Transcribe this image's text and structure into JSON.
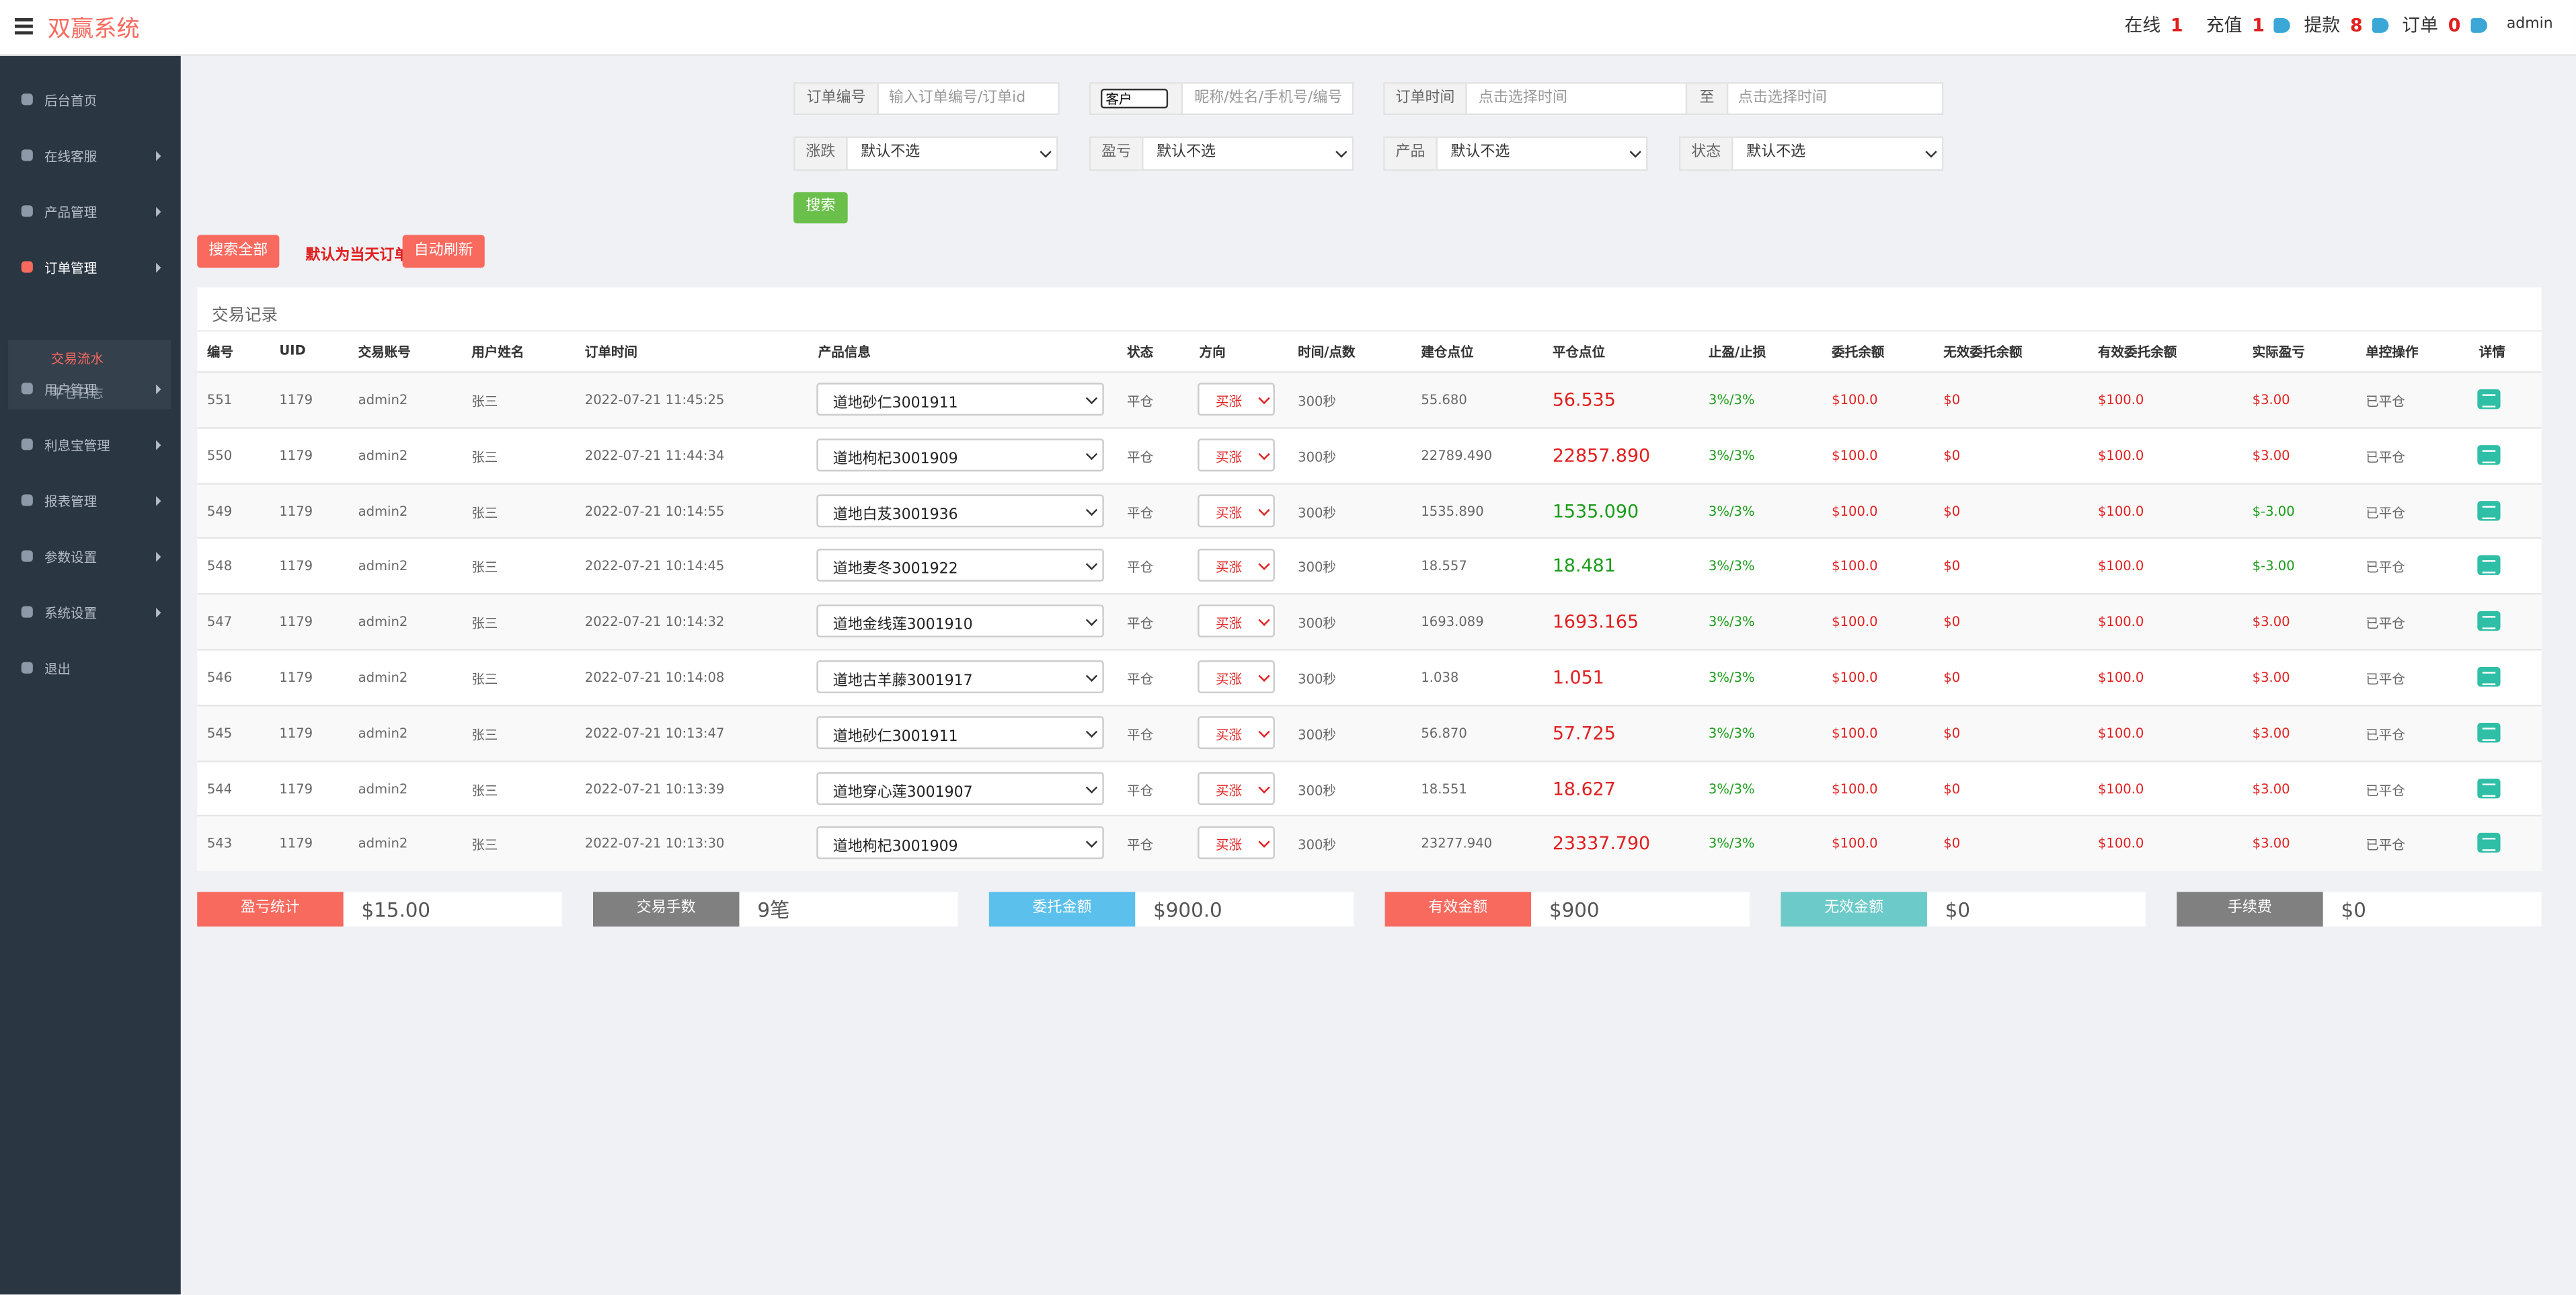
{
  "header": {
    "brand": "双赢系统",
    "stats": [
      {
        "label": "在线",
        "value": "1"
      },
      {
        "label": "充值",
        "value": "1"
      },
      {
        "label": "提款",
        "value": "8"
      },
      {
        "label": "订单",
        "value": "0"
      }
    ],
    "user": "admin"
  },
  "sidebar": {
    "items": [
      "后台首页",
      "在线客服",
      "产品管理",
      "订单管理",
      "用户管理",
      "利息宝管理",
      "报表管理",
      "参数设置",
      "系统设置",
      "退出"
    ],
    "sub": [
      "交易流水",
      "平仓日志"
    ]
  },
  "filters": {
    "order_no": {
      "label": "订单编号",
      "placeholder": "输入订单编号/订单id"
    },
    "customer": {
      "select": "客户",
      "placeholder": "昵称/姓名/手机号/编号"
    },
    "time": {
      "label": "订单时间",
      "from": "点击选择时间",
      "to_label": "至",
      "to": "点击选择时间"
    },
    "selects": [
      {
        "label": "涨跌",
        "value": "默认不选"
      },
      {
        "label": "盈亏",
        "value": "默认不选"
      },
      {
        "label": "产品",
        "value": "默认不选"
      },
      {
        "label": "状态",
        "value": "默认不选"
      }
    ],
    "search": "搜索"
  },
  "actions": {
    "search_all": "搜索全部",
    "note": "默认为当天订单",
    "auto_refresh": "自动刷新"
  },
  "table": {
    "title": "交易记录",
    "columns": [
      "编号",
      "UID",
      "交易账号",
      "用户姓名",
      "订单时间",
      "产品信息",
      "状态",
      "方向",
      "时间/点数",
      "建仓点位",
      "平仓点位",
      "止盈/止损",
      "委托余额",
      "无效委托余额",
      "有效委托余额",
      "实际盈亏",
      "单控操作",
      "详情"
    ],
    "rows": [
      [
        "551",
        "1179",
        "admin2",
        "张三",
        "2022-07-21 11:45:25",
        "道地砂仁3001911",
        "平仓",
        "买涨",
        "300秒",
        "55.680",
        "56.535",
        "3%/3%",
        "$100.0",
        "$0",
        "$100.0",
        "$3.00",
        "已平仓"
      ],
      [
        "550",
        "1179",
        "admin2",
        "张三",
        "2022-07-21 11:44:34",
        "道地枸杞3001909",
        "平仓",
        "买涨",
        "300秒",
        "22789.490",
        "22857.890",
        "3%/3%",
        "$100.0",
        "$0",
        "$100.0",
        "$3.00",
        "已平仓"
      ],
      [
        "549",
        "1179",
        "admin2",
        "张三",
        "2022-07-21 10:14:55",
        "道地白芨3001936",
        "平仓",
        "买涨",
        "300秒",
        "1535.890",
        "1535.090",
        "3%/3%",
        "$100.0",
        "$0",
        "$100.0",
        "$-3.00",
        "已平仓"
      ],
      [
        "548",
        "1179",
        "admin2",
        "张三",
        "2022-07-21 10:14:45",
        "道地麦冬3001922",
        "平仓",
        "买涨",
        "300秒",
        "18.557",
        "18.481",
        "3%/3%",
        "$100.0",
        "$0",
        "$100.0",
        "$-3.00",
        "已平仓"
      ],
      [
        "547",
        "1179",
        "admin2",
        "张三",
        "2022-07-21 10:14:32",
        "道地金线莲3001910",
        "平仓",
        "买涨",
        "300秒",
        "1693.089",
        "1693.165",
        "3%/3%",
        "$100.0",
        "$0",
        "$100.0",
        "$3.00",
        "已平仓"
      ],
      [
        "546",
        "1179",
        "admin2",
        "张三",
        "2022-07-21 10:14:08",
        "道地古羊藤3001917",
        "平仓",
        "买涨",
        "300秒",
        "1.038",
        "1.051",
        "3%/3%",
        "$100.0",
        "$0",
        "$100.0",
        "$3.00",
        "已平仓"
      ],
      [
        "545",
        "1179",
        "admin2",
        "张三",
        "2022-07-21 10:13:47",
        "道地砂仁3001911",
        "平仓",
        "买涨",
        "300秒",
        "56.870",
        "57.725",
        "3%/3%",
        "$100.0",
        "$0",
        "$100.0",
        "$3.00",
        "已平仓"
      ],
      [
        "544",
        "1179",
        "admin2",
        "张三",
        "2022-07-21 10:13:39",
        "道地穿心莲3001907",
        "平仓",
        "买涨",
        "300秒",
        "18.551",
        "18.627",
        "3%/3%",
        "$100.0",
        "$0",
        "$100.0",
        "$3.00",
        "已平仓"
      ],
      [
        "543",
        "1179",
        "admin2",
        "张三",
        "2022-07-21 10:13:30",
        "道地枸杞3001909",
        "平仓",
        "买涨",
        "300秒",
        "23277.940",
        "23337.790",
        "3%/3%",
        "$100.0",
        "$0",
        "$100.0",
        "$3.00",
        "已平仓"
      ]
    ]
  },
  "summary": [
    {
      "label": "盈亏统计",
      "value": "$15.00"
    },
    {
      "label": "交易手数",
      "value": "9笔"
    },
    {
      "label": "委托金额",
      "value": "$900.0"
    },
    {
      "label": "有效金额",
      "value": "$900"
    },
    {
      "label": "无效金额",
      "value": "$0"
    },
    {
      "label": "手续费",
      "value": "$0"
    }
  ]
}
